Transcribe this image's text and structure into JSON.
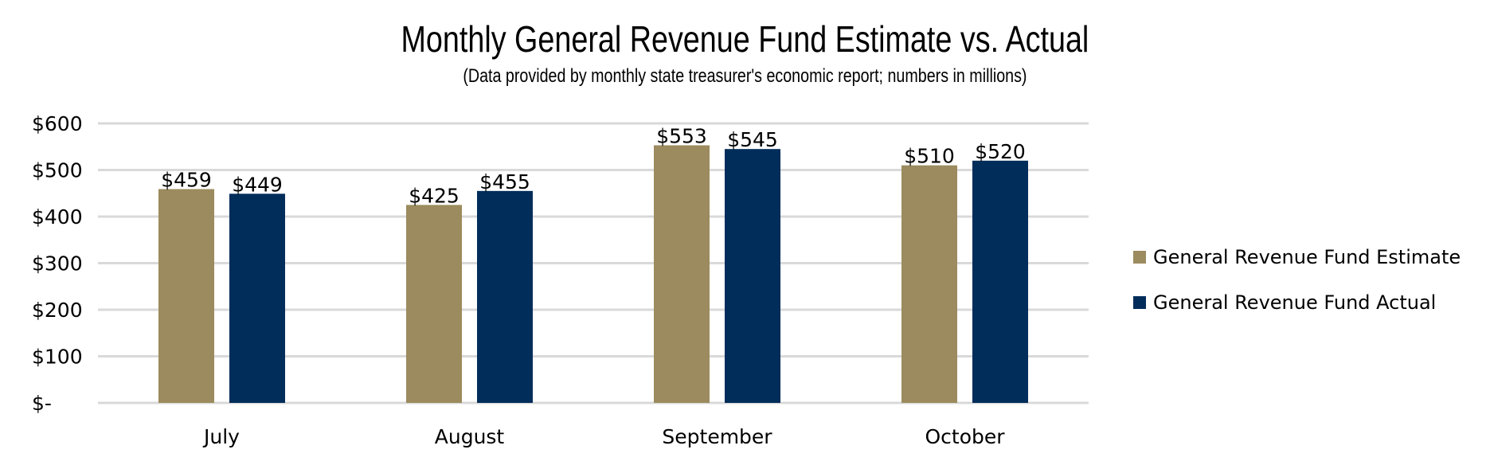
{
  "chart_data": {
    "type": "bar",
    "title": "Monthly General Revenue Fund Estimate vs. Actual",
    "subtitle": "(Data provided by monthly state treasurer's economic report; numbers in millions)",
    "categories": [
      "July",
      "August",
      "September",
      "October"
    ],
    "series": [
      {
        "name": "General Revenue Fund Estimate",
        "color": "#9c8b5e",
        "values": [
          459,
          425,
          553,
          510
        ],
        "labels": [
          "$459",
          "$425",
          "$553",
          "$510"
        ]
      },
      {
        "name": "General Revenue Fund Actual",
        "color": "#002d5a",
        "values": [
          449,
          455,
          545,
          520
        ],
        "labels": [
          "$449",
          "$455",
          "$545",
          "$520"
        ]
      }
    ],
    "ylim": [
      0,
      600
    ],
    "yticks": [
      0,
      100,
      200,
      300,
      400,
      500,
      600
    ],
    "ytick_labels": [
      "$-",
      "$100",
      "$200",
      "$300",
      "$400",
      "$500",
      "$600"
    ],
    "grid": true,
    "gridline_color": "#d9d9d9",
    "legend_position": "right",
    "xlabel": "",
    "ylabel": ""
  }
}
